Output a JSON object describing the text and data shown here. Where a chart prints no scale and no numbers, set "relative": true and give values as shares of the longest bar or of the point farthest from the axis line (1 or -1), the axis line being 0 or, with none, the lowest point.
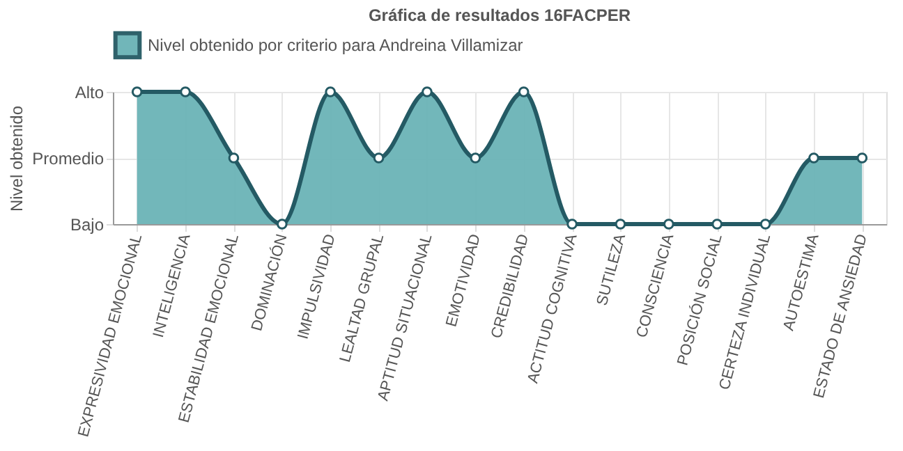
{
  "chart_data": {
    "type": "area",
    "title": "Gráfica de resultados 16FACPER",
    "ylabel": "Nivel obtenido",
    "categories": [
      "EXPRESIVIDAD EMOCIONAL",
      "INTELIGENCIA",
      "ESTABILIDAD EMOCIONAL",
      "DOMINACIÓN",
      "IMPULSIVIDAD",
      "LEALTAD GRUPAL",
      "APTITUD SITUACIONAL",
      "EMOTIVIDAD",
      "CREDIBILIDAD",
      "ACTITUD COGNITIVA",
      "SUTILEZA",
      "CONSCIENCIA",
      "POSICIÓN SOCIAL",
      "CERTEZA INDIVIDUAL",
      "AUTOESTIMA",
      "ESTADO DE ANSIEDAD"
    ],
    "series": [
      {
        "name": "Nivel obtenido por criterio para Andreina Villamizar",
        "color": "#6ab3b6",
        "values": [
          1,
          1,
          0.5,
          0,
          1,
          0.5,
          1,
          0.5,
          1,
          0,
          0,
          0,
          0,
          0,
          0.5,
          0.5
        ]
      }
    ],
    "relative": true,
    "y_categories": [
      "Alto",
      "Promedio",
      "Bajo"
    ],
    "grid": true,
    "legend": "top",
    "marker": "circle",
    "line_style": "solid"
  }
}
